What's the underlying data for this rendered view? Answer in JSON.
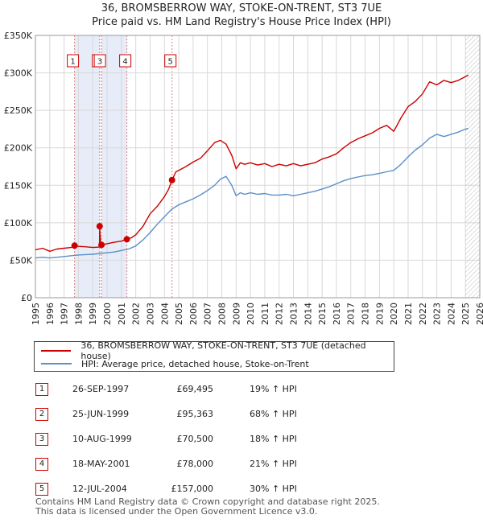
{
  "title_line1": "36, BROMSBERROW WAY, STOKE-ON-TRENT, ST3 7UE",
  "title_line2": "Price paid vs. HM Land Registry's House Price Index (HPI)",
  "legend": {
    "red_label": "36, BROMSBERROW WAY, STOKE-ON-TRENT, ST3 7UE (detached house)",
    "blue_label": "HPI: Average price, detached house, Stoke-on-Trent",
    "red_color": "#cc0000",
    "blue_color": "#5b8fc9"
  },
  "transactions": [
    {
      "num": "1",
      "date": "26-SEP-1997",
      "price": "£69,495",
      "hpi": "19% ↑ HPI"
    },
    {
      "num": "2",
      "date": "25-JUN-1999",
      "price": "£95,363",
      "hpi": "68% ↑ HPI"
    },
    {
      "num": "3",
      "date": "10-AUG-1999",
      "price": "£70,500",
      "hpi": "18% ↑ HPI"
    },
    {
      "num": "4",
      "date": "18-MAY-2001",
      "price": "£78,000",
      "hpi": "21% ↑ HPI"
    },
    {
      "num": "5",
      "date": "12-JUL-2004",
      "price": "£157,000",
      "hpi": "30% ↑ HPI"
    }
  ],
  "footer_line1": "Contains HM Land Registry data © Crown copyright and database right 2025.",
  "footer_line2": "This data is licensed under the Open Government Licence v3.0.",
  "chart_data": {
    "type": "line",
    "title": "36, BROMSBERROW WAY, STOKE-ON-TRENT, ST3 7UE",
    "subtitle": "Price paid vs. HM Land Registry's House Price Index (HPI)",
    "xlim": [
      1995,
      2026
    ],
    "ylim": [
      0,
      350000
    ],
    "yticks": [
      0,
      50000,
      100000,
      150000,
      200000,
      250000,
      300000,
      350000
    ],
    "ytick_labels": [
      "£0",
      "£50K",
      "£100K",
      "£150K",
      "£200K",
      "£250K",
      "£300K",
      "£350K"
    ],
    "xticks": [
      1995,
      1996,
      1997,
      1998,
      1999,
      2000,
      2001,
      2002,
      2003,
      2004,
      2005,
      2006,
      2007,
      2008,
      2009,
      2010,
      2011,
      2012,
      2013,
      2014,
      2015,
      2016,
      2017,
      2018,
      2019,
      2020,
      2021,
      2022,
      2023,
      2024,
      2025,
      2026
    ],
    "grid": true,
    "forecast_start": 2025.0,
    "sale_points": [
      {
        "label": "1",
        "x": 1997.73,
        "y": 69495
      },
      {
        "label": "2",
        "x": 1999.48,
        "y": 95363
      },
      {
        "label": "3",
        "x": 1999.61,
        "y": 70500
      },
      {
        "label": "4",
        "x": 2001.38,
        "y": 78000
      },
      {
        "label": "5",
        "x": 2004.53,
        "y": 157000
      }
    ],
    "series": [
      {
        "name": "36, BROMSBERROW WAY, STOKE-ON-TRENT, ST3 7UE (detached house)",
        "color": "#cc0000",
        "x": [
          1995.0,
          1995.5,
          1996.0,
          1996.5,
          1997.0,
          1997.5,
          1997.73,
          1998.0,
          1998.5,
          1999.0,
          1999.47,
          1999.48,
          1999.55,
          1999.61,
          2000.0,
          2000.5,
          2001.0,
          2001.38,
          2001.7,
          2002.0,
          2002.5,
          2003.0,
          2003.5,
          2004.0,
          2004.3,
          2004.53,
          2004.8,
          2005.0,
          2005.5,
          2006.0,
          2006.5,
          2007.0,
          2007.5,
          2007.9,
          2008.3,
          2008.7,
          2009.0,
          2009.3,
          2009.6,
          2010.0,
          2010.5,
          2011.0,
          2011.5,
          2012.0,
          2012.5,
          2013.0,
          2013.5,
          2014.0,
          2014.5,
          2015.0,
          2015.5,
          2016.0,
          2016.5,
          2017.0,
          2017.5,
          2018.0,
          2018.5,
          2019.0,
          2019.5,
          2020.0,
          2020.5,
          2021.0,
          2021.5,
          2022.0,
          2022.5,
          2023.0,
          2023.5,
          2024.0,
          2024.5,
          2025.0,
          2025.2
        ],
        "y": [
          64000,
          66000,
          62000,
          65000,
          66000,
          67000,
          69495,
          68500,
          68000,
          67000,
          67500,
          95363,
          72000,
          70500,
          72000,
          74000,
          75500,
          78000,
          80000,
          84000,
          95000,
          112000,
          122000,
          135000,
          145000,
          157000,
          168000,
          170000,
          175000,
          181000,
          186000,
          196000,
          207000,
          210000,
          205000,
          190000,
          172000,
          180000,
          178000,
          180000,
          177000,
          179000,
          175000,
          178000,
          176000,
          179000,
          176000,
          178000,
          180000,
          185000,
          188000,
          192000,
          200000,
          207000,
          212000,
          216000,
          220000,
          226000,
          230000,
          222000,
          240000,
          255000,
          262000,
          272000,
          288000,
          284000,
          290000,
          287000,
          290000,
          295000,
          297000
        ]
      },
      {
        "name": "HPI: Average price, detached house, Stoke-on-Trent",
        "color": "#5b8fc9",
        "x": [
          1995.0,
          1995.5,
          1996.0,
          1996.5,
          1997.0,
          1997.5,
          1998.0,
          1998.5,
          1999.0,
          1999.5,
          2000.0,
          2000.5,
          2001.0,
          2001.5,
          2002.0,
          2002.5,
          2003.0,
          2003.5,
          2004.0,
          2004.5,
          2005.0,
          2005.5,
          2006.0,
          2006.5,
          2007.0,
          2007.5,
          2007.9,
          2008.3,
          2008.7,
          2009.0,
          2009.3,
          2009.6,
          2010.0,
          2010.5,
          2011.0,
          2011.5,
          2012.0,
          2012.5,
          2013.0,
          2013.5,
          2014.0,
          2014.5,
          2015.0,
          2015.5,
          2016.0,
          2016.5,
          2017.0,
          2017.5,
          2018.0,
          2018.5,
          2019.0,
          2019.5,
          2020.0,
          2020.5,
          2021.0,
          2021.5,
          2022.0,
          2022.5,
          2023.0,
          2023.5,
          2024.0,
          2024.5,
          2025.0,
          2025.2
        ],
        "y": [
          53000,
          54000,
          53000,
          54000,
          55000,
          56000,
          57000,
          57500,
          58000,
          59000,
          60000,
          61000,
          63000,
          65000,
          69000,
          77000,
          87000,
          98000,
          108000,
          118000,
          124000,
          128000,
          132000,
          137000,
          143000,
          150000,
          158000,
          162000,
          150000,
          136000,
          140000,
          138000,
          140000,
          138000,
          139000,
          137000,
          137000,
          138000,
          136000,
          138000,
          140000,
          142000,
          145000,
          148000,
          152000,
          156000,
          159000,
          161000,
          163000,
          164000,
          166000,
          168000,
          170000,
          178000,
          188000,
          197000,
          204000,
          213000,
          218000,
          215000,
          218000,
          221000,
          225000,
          226000
        ]
      }
    ]
  }
}
